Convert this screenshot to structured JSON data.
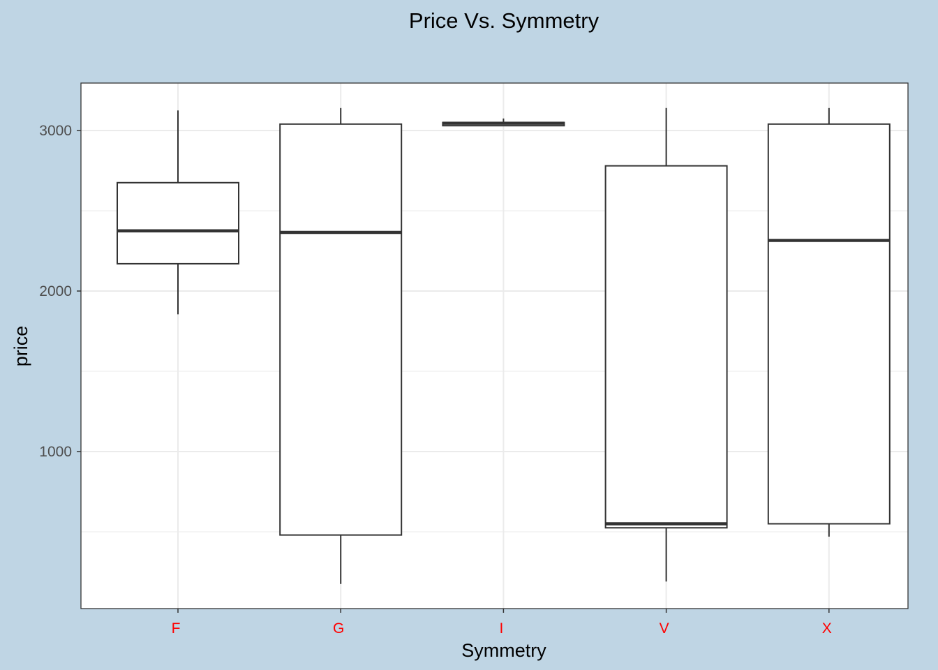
{
  "chart_data": {
    "type": "box",
    "title": "Price Vs. Symmetry",
    "xlabel": "Symmetry",
    "ylabel": "price",
    "categories": [
      "F",
      "G",
      "I",
      "V",
      "X"
    ],
    "boxes": [
      {
        "category": "F",
        "whisker_low": 1855,
        "q1": 2170,
        "median": 2375,
        "q3": 2675,
        "whisker_high": 3125
      },
      {
        "category": "G",
        "whisker_low": 175,
        "q1": 480,
        "median": 2365,
        "q3": 3040,
        "whisker_high": 3140
      },
      {
        "category": "I",
        "whisker_low": 3030,
        "q1": 3030,
        "median": 3045,
        "q3": 3050,
        "whisker_high": 3075
      },
      {
        "category": "V",
        "whisker_low": 190,
        "q1": 525,
        "median": 550,
        "q3": 2780,
        "whisker_high": 3140
      },
      {
        "category": "X",
        "whisker_low": 470,
        "q1": 550,
        "median": 2315,
        "q3": 3040,
        "whisker_high": 3140
      }
    ],
    "y_ticks": [
      1000,
      2000,
      3000
    ],
    "y_tick_labels": [
      "1000",
      "2000",
      "3000"
    ],
    "ylim": [
      0,
      3290
    ],
    "grid": true,
    "colors": {
      "plot_background": "#bfd5e4",
      "panel_background": "#ffffff",
      "grid": "#ebebeb",
      "box_stroke": "#333333",
      "x_tick_label": "#ff0000",
      "y_tick_label": "#4d4d4d",
      "text": "#000000"
    }
  }
}
